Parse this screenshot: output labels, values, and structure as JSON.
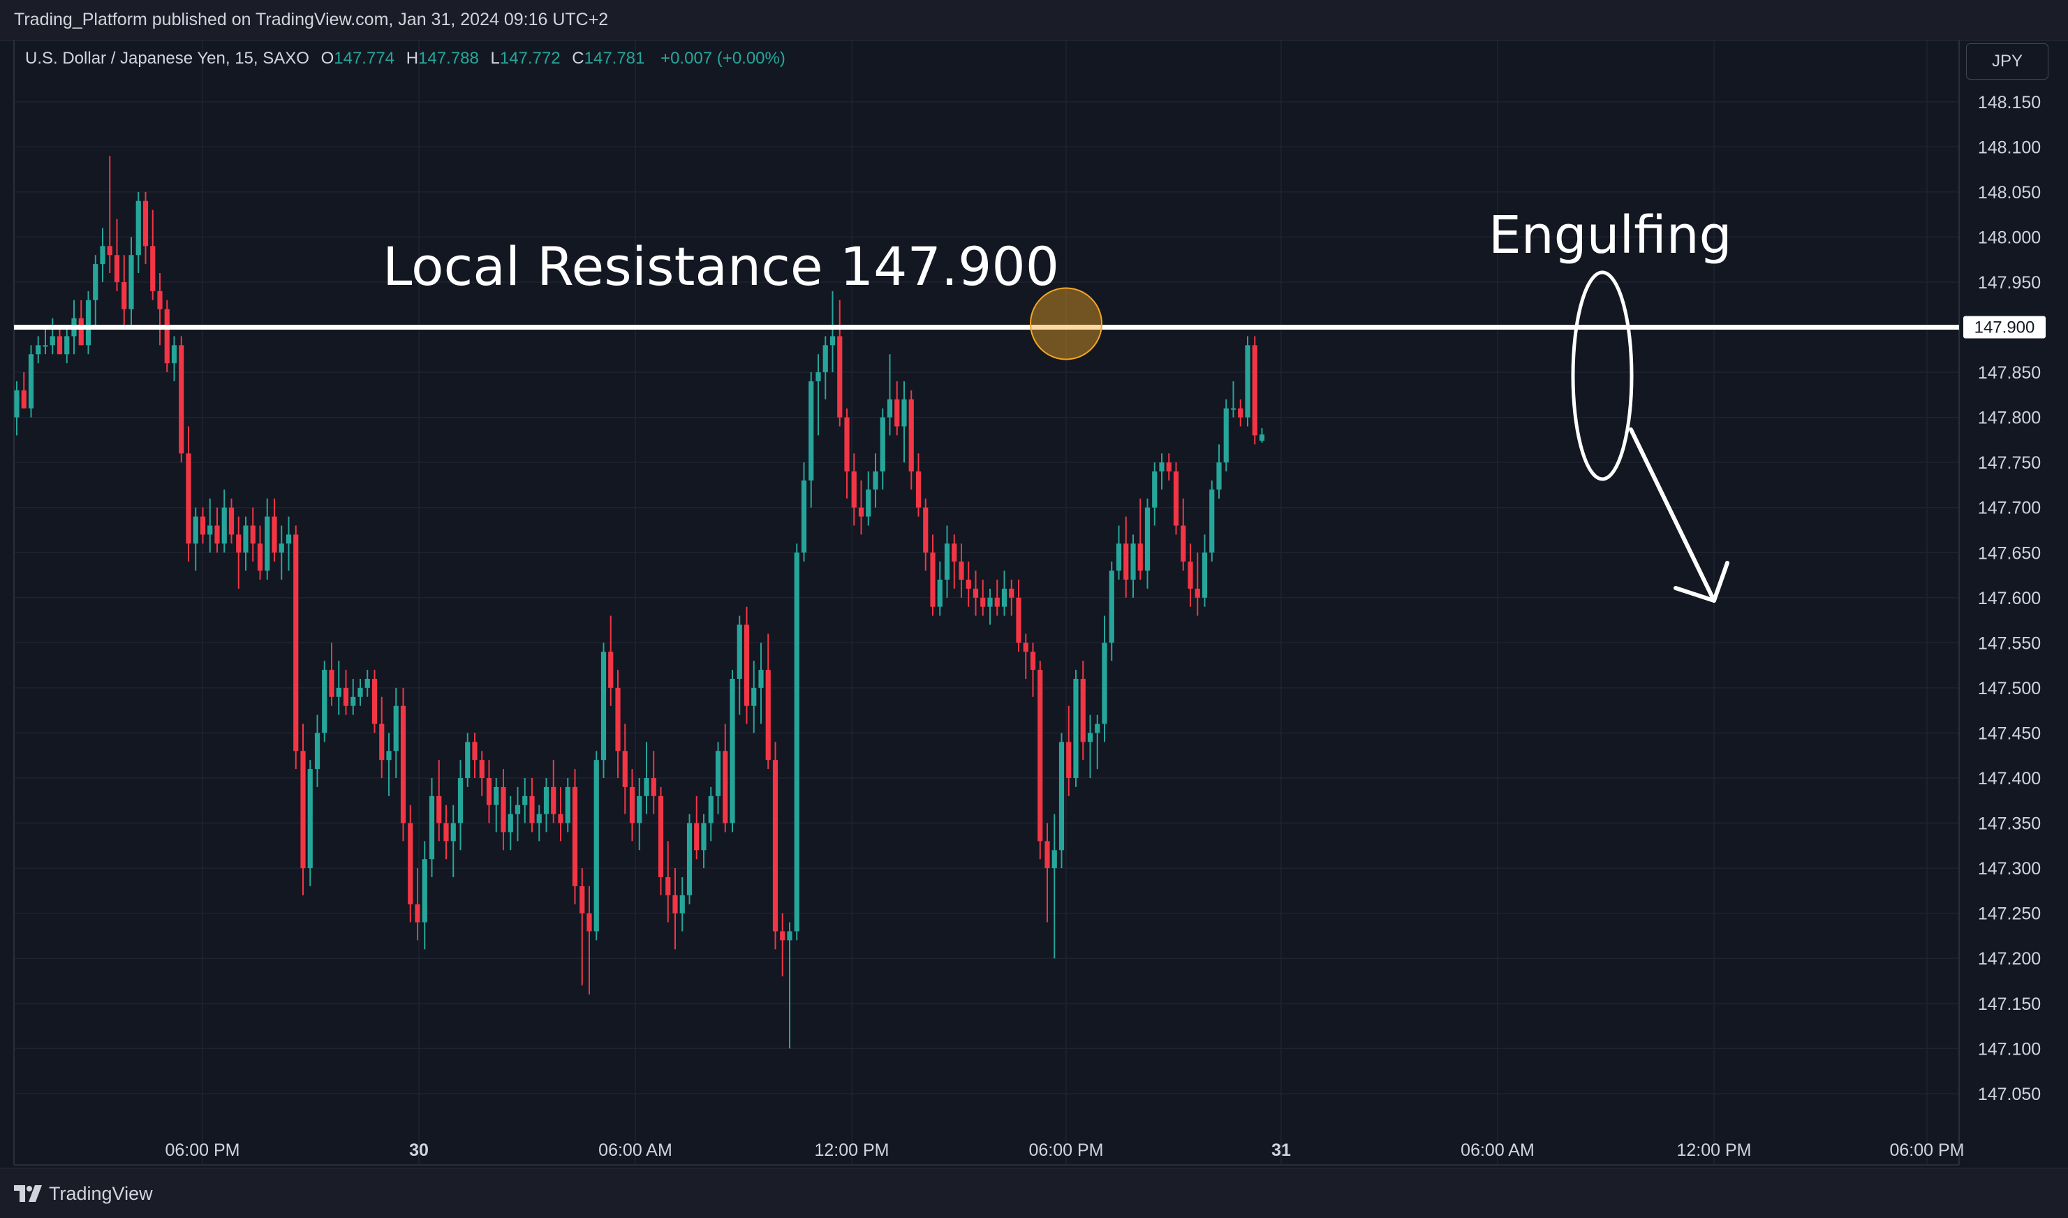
{
  "header": {
    "published_text": "Trading_Platform published on TradingView.com, Jan 31, 2024 09:16 UTC+2"
  },
  "legend": {
    "symbol": "U.S. Dollar / Japanese Yen, 15, SAXO",
    "open_label": "O",
    "open": "147.774",
    "high_label": "H",
    "high": "147.788",
    "low_label": "L",
    "low": "147.772",
    "close_label": "C",
    "close": "147.781",
    "change": "+0.007 (+0.00%)"
  },
  "currency_button": "JPY",
  "footer": {
    "brand": "TradingView"
  },
  "colors": {
    "background": "#131722",
    "up": "#26a69a",
    "down": "#f23645",
    "grid": "#1f2330",
    "text": "#d1d4dc",
    "annotation": "#ffffff",
    "highlight": "#f5a623"
  },
  "chart_data": {
    "type": "candlestick",
    "symbol": "USDJPY",
    "interval": "15",
    "y_axis": {
      "position": "right",
      "ticks": [
        "148.150",
        "148.100",
        "148.050",
        "148.000",
        "147.950",
        "147.900",
        "147.850",
        "147.800",
        "147.750",
        "147.700",
        "147.650",
        "147.600",
        "147.550",
        "147.500",
        "147.450",
        "147.400",
        "147.350",
        "147.300",
        "147.250",
        "147.200",
        "147.150",
        "147.100",
        "147.050"
      ],
      "ylim": [
        147.0,
        148.2
      ]
    },
    "x_axis": {
      "ticks": [
        {
          "label": "06:00 PM",
          "bold": false
        },
        {
          "label": "30",
          "bold": true
        },
        {
          "label": "06:00 AM",
          "bold": false
        },
        {
          "label": "12:00 PM",
          "bold": false
        },
        {
          "label": "06:00 PM",
          "bold": false
        },
        {
          "label": "31",
          "bold": true
        },
        {
          "label": "06:00 AM",
          "bold": false
        },
        {
          "label": "12:00 PM",
          "bold": false
        },
        {
          "label": "06:00 PM",
          "bold": false
        }
      ]
    },
    "resistance": {
      "value": 147.9,
      "label": "147.900"
    },
    "annotations": {
      "resistance_text": "Local Resistance 147.900",
      "pattern_text": "Engulfing"
    },
    "grid": true,
    "candles": [
      [
        147.8,
        147.84,
        147.78,
        147.83
      ],
      [
        147.83,
        147.85,
        147.81,
        147.81
      ],
      [
        147.81,
        147.88,
        147.8,
        147.87
      ],
      [
        147.87,
        147.89,
        147.86,
        147.88
      ],
      [
        147.88,
        147.9,
        147.87,
        147.88
      ],
      [
        147.88,
        147.91,
        147.87,
        147.89
      ],
      [
        147.89,
        147.9,
        147.87,
        147.87
      ],
      [
        147.87,
        147.9,
        147.86,
        147.89
      ],
      [
        147.89,
        147.93,
        147.87,
        147.91
      ],
      [
        147.91,
        147.93,
        147.88,
        147.88
      ],
      [
        147.88,
        147.94,
        147.87,
        147.93
      ],
      [
        147.93,
        147.98,
        147.9,
        147.97
      ],
      [
        147.97,
        148.01,
        147.95,
        147.99
      ],
      [
        147.99,
        148.09,
        147.96,
        147.98
      ],
      [
        147.98,
        148.02,
        147.94,
        147.95
      ],
      [
        147.95,
        147.98,
        147.9,
        147.92
      ],
      [
        147.92,
        148.0,
        147.9,
        147.98
      ],
      [
        147.98,
        148.05,
        147.96,
        148.04
      ],
      [
        148.04,
        148.05,
        147.97,
        147.99
      ],
      [
        147.99,
        148.03,
        147.93,
        147.94
      ],
      [
        147.94,
        147.96,
        147.88,
        147.92
      ],
      [
        147.92,
        147.93,
        147.85,
        147.86
      ],
      [
        147.86,
        147.89,
        147.84,
        147.88
      ],
      [
        147.88,
        147.89,
        147.75,
        147.76
      ],
      [
        147.76,
        147.79,
        147.64,
        147.66
      ],
      [
        147.66,
        147.7,
        147.63,
        147.69
      ],
      [
        147.69,
        147.7,
        147.66,
        147.67
      ],
      [
        147.67,
        147.71,
        147.65,
        147.68
      ],
      [
        147.68,
        147.7,
        147.65,
        147.66
      ],
      [
        147.66,
        147.72,
        147.65,
        147.7
      ],
      [
        147.7,
        147.71,
        147.66,
        147.67
      ],
      [
        147.67,
        147.69,
        147.61,
        147.65
      ],
      [
        147.65,
        147.69,
        147.63,
        147.68
      ],
      [
        147.68,
        147.7,
        147.64,
        147.66
      ],
      [
        147.66,
        147.68,
        147.62,
        147.63
      ],
      [
        147.63,
        147.71,
        147.62,
        147.69
      ],
      [
        147.69,
        147.71,
        147.64,
        147.65
      ],
      [
        147.65,
        147.68,
        147.62,
        147.66
      ],
      [
        147.66,
        147.69,
        147.63,
        147.67
      ],
      [
        147.67,
        147.68,
        147.41,
        147.43
      ],
      [
        147.43,
        147.46,
        147.27,
        147.3
      ],
      [
        147.3,
        147.42,
        147.28,
        147.41
      ],
      [
        147.41,
        147.47,
        147.39,
        147.45
      ],
      [
        147.45,
        147.53,
        147.44,
        147.52
      ],
      [
        147.52,
        147.55,
        147.48,
        147.49
      ],
      [
        147.49,
        147.53,
        147.47,
        147.5
      ],
      [
        147.5,
        147.52,
        147.47,
        147.48
      ],
      [
        147.48,
        147.51,
        147.47,
        147.49
      ],
      [
        147.49,
        147.51,
        147.48,
        147.5
      ],
      [
        147.5,
        147.52,
        147.49,
        147.51
      ],
      [
        147.51,
        147.52,
        147.45,
        147.46
      ],
      [
        147.46,
        147.49,
        147.4,
        147.42
      ],
      [
        147.42,
        147.45,
        147.38,
        147.43
      ],
      [
        147.43,
        147.5,
        147.4,
        147.48
      ],
      [
        147.48,
        147.5,
        147.33,
        147.35
      ],
      [
        147.35,
        147.37,
        147.24,
        147.26
      ],
      [
        147.26,
        147.3,
        147.22,
        147.24
      ],
      [
        147.24,
        147.33,
        147.21,
        147.31
      ],
      [
        147.31,
        147.4,
        147.29,
        147.38
      ],
      [
        147.38,
        147.42,
        147.33,
        147.35
      ],
      [
        147.35,
        147.37,
        147.31,
        147.33
      ],
      [
        147.33,
        147.37,
        147.29,
        147.35
      ],
      [
        147.35,
        147.42,
        147.32,
        147.4
      ],
      [
        147.4,
        147.45,
        147.39,
        147.44
      ],
      [
        147.44,
        147.45,
        147.4,
        147.42
      ],
      [
        147.42,
        147.43,
        147.38,
        147.4
      ],
      [
        147.4,
        147.42,
        147.35,
        147.37
      ],
      [
        147.37,
        147.4,
        147.34,
        147.39
      ],
      [
        147.39,
        147.41,
        147.32,
        147.34
      ],
      [
        147.34,
        147.38,
        147.32,
        147.36
      ],
      [
        147.36,
        147.39,
        147.33,
        147.37
      ],
      [
        147.37,
        147.4,
        147.35,
        147.38
      ],
      [
        147.38,
        147.4,
        147.34,
        147.35
      ],
      [
        147.35,
        147.37,
        147.33,
        147.36
      ],
      [
        147.36,
        147.4,
        147.34,
        147.39
      ],
      [
        147.39,
        147.42,
        147.35,
        147.36
      ],
      [
        147.36,
        147.39,
        147.33,
        147.35
      ],
      [
        147.35,
        147.4,
        147.34,
        147.39
      ],
      [
        147.39,
        147.41,
        147.26,
        147.28
      ],
      [
        147.28,
        147.3,
        147.17,
        147.25
      ],
      [
        147.25,
        147.28,
        147.16,
        147.23
      ],
      [
        147.23,
        147.43,
        147.22,
        147.42
      ],
      [
        147.42,
        147.55,
        147.4,
        147.54
      ],
      [
        147.54,
        147.58,
        147.48,
        147.5
      ],
      [
        147.5,
        147.52,
        147.4,
        147.43
      ],
      [
        147.43,
        147.46,
        147.36,
        147.39
      ],
      [
        147.39,
        147.41,
        147.33,
        147.35
      ],
      [
        147.35,
        147.4,
        147.32,
        147.38
      ],
      [
        147.38,
        147.44,
        147.36,
        147.4
      ],
      [
        147.4,
        147.43,
        147.36,
        147.38
      ],
      [
        147.38,
        147.39,
        147.27,
        147.29
      ],
      [
        147.29,
        147.33,
        147.24,
        147.27
      ],
      [
        147.27,
        147.3,
        147.21,
        147.25
      ],
      [
        147.25,
        147.29,
        147.23,
        147.27
      ],
      [
        147.27,
        147.36,
        147.26,
        147.35
      ],
      [
        147.35,
        147.38,
        147.31,
        147.32
      ],
      [
        147.32,
        147.36,
        147.3,
        147.35
      ],
      [
        147.35,
        147.39,
        147.33,
        147.38
      ],
      [
        147.38,
        147.44,
        147.36,
        147.43
      ],
      [
        147.43,
        147.46,
        147.34,
        147.35
      ],
      [
        147.35,
        147.52,
        147.34,
        147.51
      ],
      [
        147.51,
        147.58,
        147.47,
        147.57
      ],
      [
        147.57,
        147.59,
        147.46,
        147.48
      ],
      [
        147.48,
        147.53,
        147.45,
        147.5
      ],
      [
        147.5,
        147.55,
        147.46,
        147.52
      ],
      [
        147.52,
        147.56,
        147.41,
        147.42
      ],
      [
        147.42,
        147.44,
        147.21,
        147.23
      ],
      [
        147.23,
        147.25,
        147.18,
        147.22
      ],
      [
        147.22,
        147.24,
        147.1,
        147.23
      ],
      [
        147.23,
        147.66,
        147.22,
        147.65
      ],
      [
        147.65,
        147.75,
        147.64,
        147.73
      ],
      [
        147.73,
        147.85,
        147.7,
        147.84
      ],
      [
        147.84,
        147.87,
        147.78,
        147.85
      ],
      [
        147.85,
        147.89,
        147.82,
        147.88
      ],
      [
        147.88,
        147.94,
        147.85,
        147.89
      ],
      [
        147.89,
        147.93,
        147.79,
        147.8
      ],
      [
        147.8,
        147.81,
        147.71,
        147.74
      ],
      [
        147.74,
        147.76,
        147.68,
        147.7
      ],
      [
        147.7,
        147.73,
        147.67,
        147.69
      ],
      [
        147.69,
        147.74,
        147.68,
        147.72
      ],
      [
        147.72,
        147.76,
        147.7,
        147.74
      ],
      [
        147.74,
        147.81,
        147.72,
        147.8
      ],
      [
        147.8,
        147.87,
        147.78,
        147.82
      ],
      [
        147.82,
        147.84,
        147.78,
        147.79
      ],
      [
        147.79,
        147.84,
        147.75,
        147.82
      ],
      [
        147.82,
        147.83,
        147.72,
        147.74
      ],
      [
        147.74,
        147.76,
        147.69,
        147.7
      ],
      [
        147.7,
        147.71,
        147.63,
        147.65
      ],
      [
        147.65,
        147.67,
        147.58,
        147.59
      ],
      [
        147.59,
        147.64,
        147.58,
        147.62
      ],
      [
        147.62,
        147.68,
        147.6,
        147.66
      ],
      [
        147.66,
        147.67,
        147.61,
        147.64
      ],
      [
        147.64,
        147.66,
        147.6,
        147.62
      ],
      [
        147.62,
        147.64,
        147.59,
        147.61
      ],
      [
        147.61,
        147.63,
        147.58,
        147.6
      ],
      [
        147.6,
        147.62,
        147.58,
        147.59
      ],
      [
        147.59,
        147.61,
        147.57,
        147.6
      ],
      [
        147.6,
        147.62,
        147.58,
        147.59
      ],
      [
        147.59,
        147.63,
        147.58,
        147.61
      ],
      [
        147.61,
        147.62,
        147.58,
        147.6
      ],
      [
        147.6,
        147.62,
        147.54,
        147.55
      ],
      [
        147.55,
        147.56,
        147.51,
        147.54
      ],
      [
        147.54,
        147.55,
        147.49,
        147.52
      ],
      [
        147.52,
        147.53,
        147.31,
        147.33
      ],
      [
        147.33,
        147.35,
        147.24,
        147.3
      ],
      [
        147.3,
        147.36,
        147.2,
        147.32
      ],
      [
        147.32,
        147.45,
        147.3,
        147.44
      ],
      [
        147.44,
        147.48,
        147.38,
        147.4
      ],
      [
        147.4,
        147.52,
        147.39,
        147.51
      ],
      [
        147.51,
        147.53,
        147.42,
        147.44
      ],
      [
        147.44,
        147.47,
        147.4,
        147.45
      ],
      [
        147.45,
        147.47,
        147.41,
        147.46
      ],
      [
        147.46,
        147.58,
        147.44,
        147.55
      ],
      [
        147.55,
        147.64,
        147.53,
        147.63
      ],
      [
        147.63,
        147.68,
        147.62,
        147.66
      ],
      [
        147.66,
        147.69,
        147.6,
        147.62
      ],
      [
        147.62,
        147.67,
        147.6,
        147.66
      ],
      [
        147.66,
        147.71,
        147.62,
        147.63
      ],
      [
        147.63,
        147.71,
        147.61,
        147.7
      ],
      [
        147.7,
        147.75,
        147.68,
        147.74
      ],
      [
        147.74,
        147.76,
        147.72,
        147.75
      ],
      [
        147.75,
        147.76,
        147.73,
        147.74
      ],
      [
        147.74,
        147.75,
        147.67,
        147.68
      ],
      [
        147.68,
        147.71,
        147.63,
        147.64
      ],
      [
        147.64,
        147.66,
        147.59,
        147.61
      ],
      [
        147.61,
        147.65,
        147.58,
        147.6
      ],
      [
        147.6,
        147.67,
        147.59,
        147.65
      ],
      [
        147.65,
        147.73,
        147.64,
        147.72
      ],
      [
        147.72,
        147.77,
        147.71,
        147.75
      ],
      [
        147.75,
        147.82,
        147.74,
        147.81
      ],
      [
        147.81,
        147.84,
        147.8,
        147.81
      ],
      [
        147.81,
        147.82,
        147.79,
        147.8
      ],
      [
        147.8,
        147.89,
        147.79,
        147.88
      ],
      [
        147.88,
        147.89,
        147.77,
        147.78
      ],
      [
        147.774,
        147.788,
        147.772,
        147.781
      ]
    ]
  }
}
